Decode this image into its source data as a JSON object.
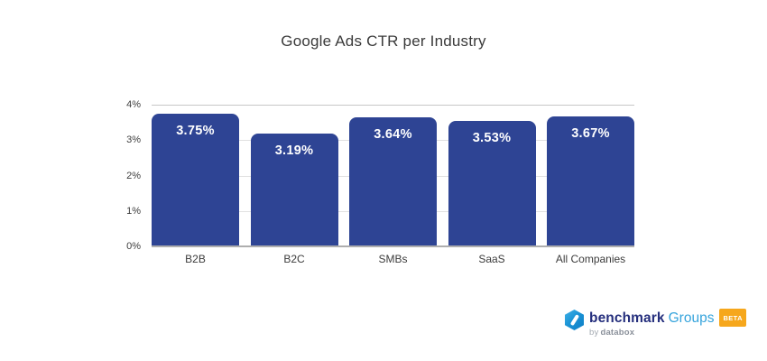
{
  "title": "Google Ads CTR per Industry",
  "chart_data": {
    "type": "bar",
    "title": "Google Ads CTR per Industry",
    "categories": [
      "B2B",
      "B2C",
      "SMBs",
      "SaaS",
      "All Companies"
    ],
    "values": [
      3.75,
      3.19,
      3.64,
      3.53,
      3.67
    ],
    "value_labels": [
      "3.75%",
      "3.19%",
      "3.64%",
      "3.53%",
      "3.67%"
    ],
    "xlabel": "",
    "ylabel": "",
    "ylim": [
      0,
      4
    ],
    "yticks": [
      "0%",
      "1%",
      "2%",
      "3%",
      "4%"
    ],
    "grid": true,
    "legend": "none",
    "bar_color": "#2e4494",
    "value_label_color": "#ffffff"
  },
  "footer": {
    "brand": "benchmark",
    "brand_suffix": "Groups",
    "beta_badge": "BETA",
    "byline_prefix": "by",
    "byline_brand": "databox",
    "brand_color": "#252f7d",
    "suffix_color": "#36a4dc",
    "badge_color": "#f6a71c"
  }
}
